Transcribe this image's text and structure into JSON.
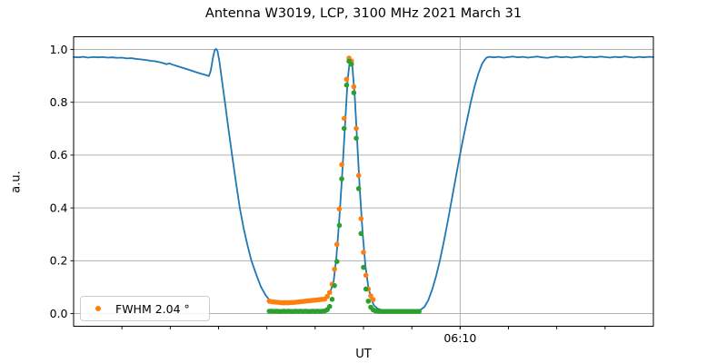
{
  "title": "Antenna W3019, LCP, 3100 MHz 2021 March 31",
  "legend": {
    "label": "FWHM 2.04 °",
    "marker_color": "#ff7f0e"
  },
  "chart_data": {
    "type": "line+scatter",
    "title": "Antenna W3019, LCP, 3100 MHz 2021 March 31",
    "xlabel": "UT",
    "ylabel": "a.u.",
    "grid": true,
    "grid_color": "#b0b0b0",
    "background": "#ffffff",
    "x_axis": {
      "unit": "minutes after 05:30 UT",
      "min": 0,
      "max": 60,
      "minor_ticks": [
        5,
        10,
        15,
        20,
        25,
        30,
        35,
        40,
        45,
        50,
        55
      ],
      "major_ticks": [
        {
          "x": 40,
          "label": "06:10",
          "gridline": true
        }
      ]
    },
    "y_axis": {
      "min": -0.048,
      "max": 1.048,
      "ticks": [
        0.0,
        0.2,
        0.4,
        0.6,
        0.8,
        1.0
      ],
      "tick_labels": [
        "0.0",
        "0.2",
        "0.4",
        "0.6",
        "0.8",
        "1.0"
      ]
    },
    "legend": {
      "label": "FWHM 2.04 °",
      "position": "lower-left",
      "series": "drift-scan-data"
    },
    "series": [
      {
        "name": "scan-curve",
        "type": "line",
        "color": "#1f77b4",
        "line_width": 1.8,
        "points": [
          [
            0,
            0.971
          ],
          [
            0.5,
            0.97
          ],
          [
            1,
            0.972
          ],
          [
            1.5,
            0.969
          ],
          [
            2,
            0.971
          ],
          [
            2.5,
            0.97
          ],
          [
            3,
            0.971
          ],
          [
            3.5,
            0.969
          ],
          [
            4,
            0.97
          ],
          [
            4.5,
            0.968
          ],
          [
            5,
            0.969
          ],
          [
            5.5,
            0.966
          ],
          [
            6,
            0.967
          ],
          [
            6.5,
            0.964
          ],
          [
            7,
            0.962
          ],
          [
            7.5,
            0.96
          ],
          [
            8,
            0.957
          ],
          [
            8.5,
            0.955
          ],
          [
            9,
            0.951
          ],
          [
            9.3,
            0.948
          ],
          [
            9.6,
            0.944
          ],
          [
            9.9,
            0.947
          ],
          [
            10.2,
            0.943
          ],
          [
            10.8,
            0.936
          ],
          [
            11.4,
            0.929
          ],
          [
            12,
            0.922
          ],
          [
            12.6,
            0.915
          ],
          [
            13.2,
            0.908
          ],
          [
            13.7,
            0.903
          ],
          [
            14.0,
            0.899
          ],
          [
            14.2,
            0.92
          ],
          [
            14.4,
            0.965
          ],
          [
            14.6,
            0.998
          ],
          [
            14.75,
            1.002
          ],
          [
            14.9,
            0.993
          ],
          [
            15.1,
            0.952
          ],
          [
            15.4,
            0.87
          ],
          [
            15.7,
            0.79
          ],
          [
            16,
            0.706
          ],
          [
            16.4,
            0.6
          ],
          [
            16.8,
            0.497
          ],
          [
            17.2,
            0.4
          ],
          [
            17.6,
            0.322
          ],
          [
            18,
            0.258
          ],
          [
            18.4,
            0.2
          ],
          [
            18.9,
            0.148
          ],
          [
            19.4,
            0.1
          ],
          [
            19.9,
            0.068
          ],
          [
            20.3,
            0.05
          ],
          [
            20.7,
            0.045
          ],
          [
            21.2,
            0.043
          ],
          [
            21.7,
            0.041
          ],
          [
            22.2,
            0.041
          ],
          [
            22.7,
            0.042
          ],
          [
            23.2,
            0.043
          ],
          [
            23.7,
            0.044
          ],
          [
            24.2,
            0.046
          ],
          [
            24.7,
            0.048
          ],
          [
            25.2,
            0.05
          ],
          [
            25.7,
            0.053
          ],
          [
            26.1,
            0.057
          ],
          [
            26.5,
            0.075
          ],
          [
            26.9,
            0.12
          ],
          [
            27.2,
            0.215
          ],
          [
            27.5,
            0.36
          ],
          [
            27.8,
            0.53
          ],
          [
            28.1,
            0.72
          ],
          [
            28.35,
            0.88
          ],
          [
            28.6,
            0.965
          ],
          [
            28.85,
            0.935
          ],
          [
            29.1,
            0.82
          ],
          [
            29.35,
            0.65
          ],
          [
            29.6,
            0.48
          ],
          [
            29.9,
            0.31
          ],
          [
            30.2,
            0.18
          ],
          [
            30.5,
            0.1
          ],
          [
            30.8,
            0.055
          ],
          [
            31.1,
            0.03
          ],
          [
            31.5,
            0.018
          ],
          [
            32,
            0.012
          ],
          [
            32.5,
            0.01
          ],
          [
            33,
            0.009
          ],
          [
            33.5,
            0.01
          ],
          [
            34,
            0.009
          ],
          [
            34.5,
            0.01
          ],
          [
            35,
            0.011
          ],
          [
            35.5,
            0.012
          ],
          [
            35.9,
            0.014
          ],
          [
            36.3,
            0.025
          ],
          [
            36.7,
            0.05
          ],
          [
            37.1,
            0.09
          ],
          [
            37.5,
            0.14
          ],
          [
            37.9,
            0.2
          ],
          [
            38.3,
            0.27
          ],
          [
            38.7,
            0.345
          ],
          [
            39.1,
            0.425
          ],
          [
            39.5,
            0.505
          ],
          [
            39.9,
            0.585
          ],
          [
            40.3,
            0.66
          ],
          [
            40.7,
            0.73
          ],
          [
            41.1,
            0.8
          ],
          [
            41.5,
            0.86
          ],
          [
            41.9,
            0.91
          ],
          [
            42.3,
            0.948
          ],
          [
            42.7,
            0.968
          ],
          [
            43,
            0.972
          ],
          [
            43.5,
            0.97
          ],
          [
            44,
            0.972
          ],
          [
            44.5,
            0.969
          ],
          [
            45,
            0.971
          ],
          [
            45.5,
            0.973
          ],
          [
            46,
            0.97
          ],
          [
            46.5,
            0.972
          ],
          [
            47,
            0.969
          ],
          [
            47.5,
            0.971
          ],
          [
            48,
            0.973
          ],
          [
            48.5,
            0.97
          ],
          [
            49,
            0.968
          ],
          [
            49.5,
            0.971
          ],
          [
            50,
            0.973
          ],
          [
            50.5,
            0.97
          ],
          [
            51,
            0.972
          ],
          [
            51.5,
            0.969
          ],
          [
            52,
            0.971
          ],
          [
            52.5,
            0.973
          ],
          [
            53,
            0.97
          ],
          [
            53.5,
            0.972
          ],
          [
            54,
            0.97
          ],
          [
            54.5,
            0.973
          ],
          [
            55,
            0.971
          ],
          [
            55.5,
            0.969
          ],
          [
            56,
            0.972
          ],
          [
            56.5,
            0.97
          ],
          [
            57,
            0.973
          ],
          [
            57.5,
            0.971
          ],
          [
            58,
            0.969
          ],
          [
            58.5,
            0.972
          ],
          [
            59,
            0.97
          ],
          [
            59.5,
            0.972
          ],
          [
            60,
            0.971
          ]
        ]
      },
      {
        "name": "drift-scan-data",
        "type": "scatter",
        "color": "#ff7f0e",
        "radius": 2.8,
        "x_start": 20.25,
        "x_step": 0.25,
        "values": [
          0.047,
          0.045,
          0.044,
          0.043,
          0.042,
          0.041,
          0.041,
          0.041,
          0.041,
          0.042,
          0.042,
          0.043,
          0.044,
          0.045,
          0.046,
          0.047,
          0.048,
          0.049,
          0.05,
          0.051,
          0.052,
          0.053,
          0.054,
          0.055,
          0.065,
          0.08,
          0.111,
          0.168,
          0.262,
          0.396,
          0.564,
          0.739,
          0.887,
          0.967,
          0.956,
          0.859,
          0.701,
          0.523,
          0.359,
          0.232,
          0.145,
          0.093,
          0.067,
          0.053
        ]
      },
      {
        "name": "gaussian-fit",
        "type": "scatter",
        "color": "#2ca02c",
        "radius": 2.8,
        "x_start": 20.25,
        "x_step": 0.25,
        "values": [
          0.009,
          0.009,
          0.008,
          0.009,
          0.008,
          0.008,
          0.009,
          0.008,
          0.009,
          0.008,
          0.008,
          0.009,
          0.008,
          0.009,
          0.008,
          0.009,
          0.008,
          0.008,
          0.009,
          0.008,
          0.009,
          0.008,
          0.009,
          0.01,
          0.015,
          0.027,
          0.054,
          0.106,
          0.197,
          0.334,
          0.51,
          0.701,
          0.865,
          0.955,
          0.944,
          0.836,
          0.664,
          0.473,
          0.303,
          0.175,
          0.093,
          0.047,
          0.024,
          0.014,
          0.01,
          0.009,
          0.008,
          0.008,
          0.008,
          0.008,
          0.008,
          0.008,
          0.008,
          0.008,
          0.008,
          0.008,
          0.008,
          0.008,
          0.008,
          0.008,
          0.008,
          0.008,
          0.008
        ]
      }
    ]
  }
}
